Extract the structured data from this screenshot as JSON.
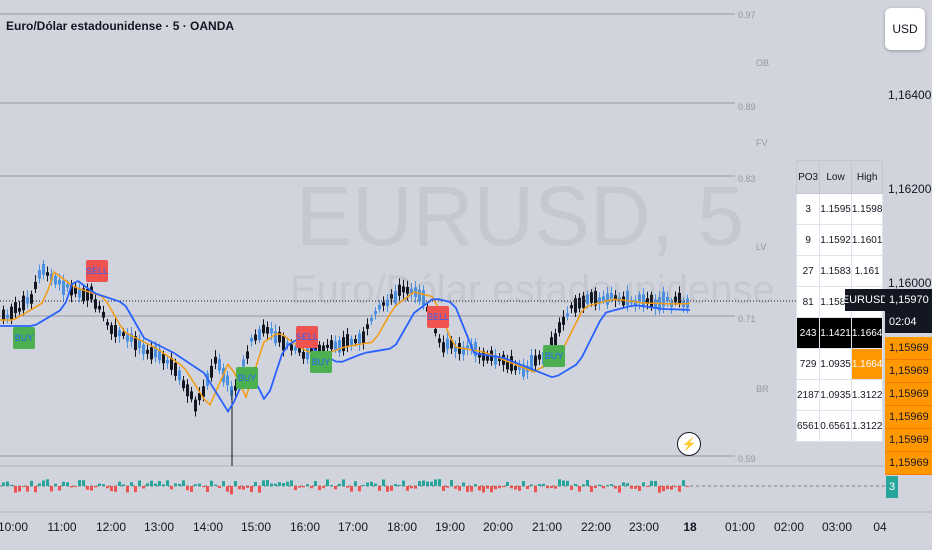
{
  "chart": {
    "title": "Euro/Dólar estadounidense · 5 · OANDA",
    "watermark_symbol": "EURUSD, 5",
    "watermark_name": "Euro/Dólar estadounidense",
    "currency_button": "USD"
  },
  "price_axis": [
    "1,16400",
    "1,16200",
    "1,16000"
  ],
  "time_axis": [
    {
      "label": "10:00",
      "bold": false
    },
    {
      "label": "11:00",
      "bold": false
    },
    {
      "label": "12:00",
      "bold": false
    },
    {
      "label": "13:00",
      "bold": false
    },
    {
      "label": "14:00",
      "bold": false
    },
    {
      "label": "15:00",
      "bold": false
    },
    {
      "label": "16:00",
      "bold": false
    },
    {
      "label": "17:00",
      "bold": false
    },
    {
      "label": "18:00",
      "bold": false
    },
    {
      "label": "19:00",
      "bold": false
    },
    {
      "label": "20:00",
      "bold": false
    },
    {
      "label": "21:00",
      "bold": false
    },
    {
      "label": "22:00",
      "bold": false
    },
    {
      "label": "23:00",
      "bold": false
    },
    {
      "label": "18",
      "bold": true
    },
    {
      "label": "01:00",
      "bold": false
    },
    {
      "label": "02:00",
      "bold": false
    },
    {
      "label": "03:00",
      "bold": false
    },
    {
      "label": "04",
      "bold": false
    }
  ],
  "fib_levels": [
    "0.97",
    "0.89",
    "0.83",
    "0.71",
    "0.59"
  ],
  "zone_labels": [
    "OB",
    "FV",
    "LV",
    "BR"
  ],
  "signals": [
    {
      "label": "BUY",
      "type": "buy"
    },
    {
      "label": "SELL",
      "type": "sell"
    },
    {
      "label": "BUY",
      "type": "buy"
    },
    {
      "label": "SELL",
      "type": "sell"
    },
    {
      "label": "BUY",
      "type": "buy"
    },
    {
      "label": "SELL",
      "type": "sell"
    },
    {
      "label": "BUY",
      "type": "buy"
    }
  ],
  "po3_table": {
    "headers": [
      "PO3",
      "Low",
      "High"
    ],
    "rows": [
      [
        "3",
        "1.1595",
        "1.1598"
      ],
      [
        "9",
        "1.1592",
        "1.1601"
      ],
      [
        "27",
        "1.1583",
        "1.161"
      ],
      [
        "81",
        "1.1583",
        ""
      ],
      [
        "243",
        "1.1421",
        "1.1664"
      ],
      [
        "729",
        "1.0935",
        "1.1664"
      ],
      [
        "2187",
        "1.0935",
        "1.3122"
      ],
      [
        "6561",
        "0.6561",
        "1.3122"
      ]
    ]
  },
  "current_price": {
    "symbol": "EURUSD",
    "price": "1,15970",
    "countdown": "02:04"
  },
  "level_stack": [
    "1,15969",
    "1,15969",
    "1,15969",
    "1,15969",
    "1,15969",
    "1,15969"
  ],
  "volume_value": "3",
  "colors": {
    "up": "#4a90e2",
    "down": "#131722",
    "ma_fast": "#f39c12",
    "ma_slow": "#2962ff",
    "buy": "#4caf50",
    "sell": "#ef5350",
    "level": "#ff9800"
  }
}
